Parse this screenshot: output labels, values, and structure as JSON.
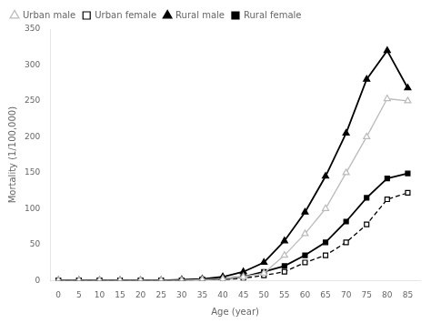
{
  "chart_data": {
    "type": "line",
    "x": [
      0,
      5,
      10,
      15,
      20,
      25,
      30,
      35,
      40,
      45,
      50,
      55,
      60,
      65,
      70,
      75,
      80,
      85
    ],
    "series": [
      {
        "name": "Urban male",
        "color": "#bbbbbb",
        "marker": "triangle-open",
        "line_style": "solid",
        "values": [
          0,
          0,
          0,
          0,
          0,
          0,
          0,
          1,
          2,
          5,
          10,
          35,
          65,
          100,
          150,
          200,
          253,
          250
        ]
      },
      {
        "name": "Urban female",
        "color": "#000000",
        "marker": "square-open",
        "line_style": "dashed",
        "values": [
          0,
          0,
          0,
          0,
          0,
          0,
          0,
          1,
          1,
          3,
          7,
          12,
          25,
          35,
          53,
          78,
          113,
          122
        ]
      },
      {
        "name": "Rural male",
        "color": "#000000",
        "marker": "triangle",
        "line_style": "solid",
        "values": [
          0,
          0,
          0,
          0,
          0,
          0,
          1,
          2,
          5,
          12,
          25,
          55,
          95,
          145,
          205,
          280,
          320,
          268
        ]
      },
      {
        "name": "Rural female",
        "color": "#000000",
        "marker": "square",
        "line_style": "solid",
        "values": [
          0,
          0,
          0,
          0,
          0,
          0,
          0,
          1,
          2,
          5,
          12,
          20,
          35,
          53,
          82,
          115,
          142,
          149
        ]
      }
    ],
    "xlabel": "Age (year)",
    "ylabel": "Mortality (1/100,000)",
    "xlim": [
      -2,
      88
    ],
    "xticks": [
      0,
      5,
      10,
      15,
      20,
      25,
      30,
      35,
      40,
      45,
      50,
      55,
      60,
      65,
      70,
      75,
      80,
      85
    ],
    "ylim": [
      0,
      350
    ],
    "yticks": [
      0,
      50,
      100,
      150,
      200,
      250,
      300,
      350
    ],
    "grid": false,
    "legend": "upper left"
  }
}
